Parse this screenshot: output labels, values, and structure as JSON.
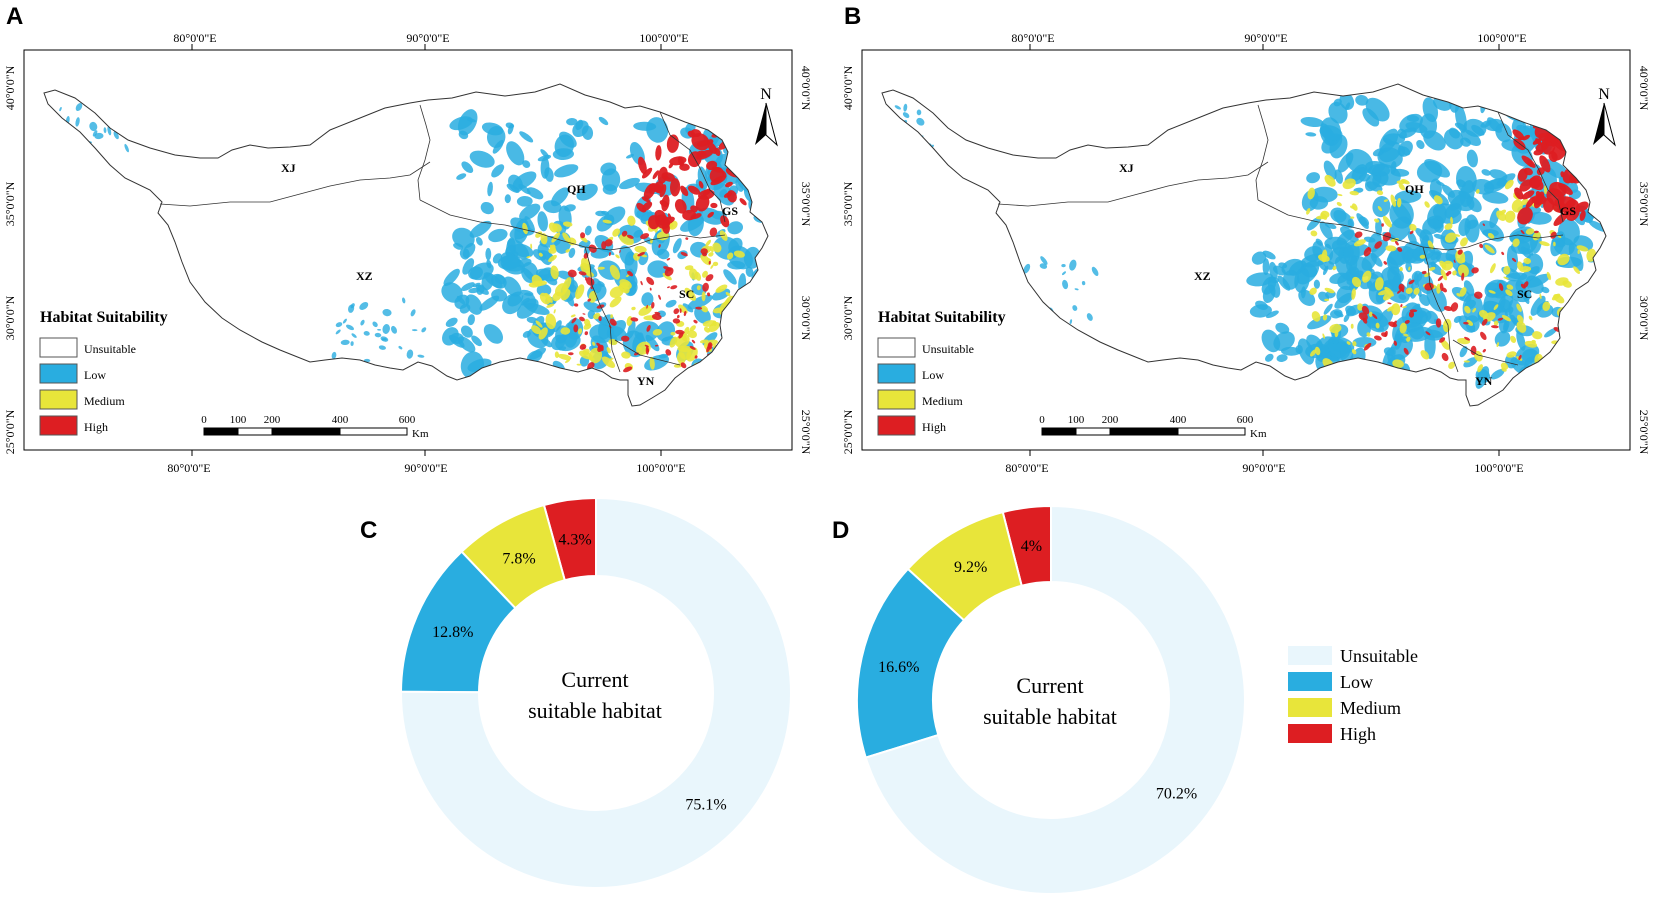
{
  "colors": {
    "unsuitable": "#e9f6fc",
    "low": "#29ade0",
    "medium": "#e8e53a",
    "high": "#dd1e22",
    "outline": "#333333"
  },
  "map_panels": [
    {
      "label": "A",
      "lon_ticks": [
        "80°0'0\"E",
        "90°0'0\"E",
        "100°0'0\"E"
      ],
      "lat_ticks": [
        "40°0'0\"N",
        "35°0'0\"N",
        "30°0'0\"N",
        "25°0'0\"N"
      ],
      "provinces": [
        "XJ",
        "QH",
        "XZ",
        "GS",
        "SC",
        "YN"
      ],
      "legend_title": "Habitat Suitability",
      "legend_items": [
        "Unsuitable",
        "Low",
        "Medium",
        "High"
      ],
      "scale_ticks": [
        "0",
        "100",
        "200",
        "400",
        "600"
      ],
      "scale_unit": "Km",
      "north_label": "N"
    },
    {
      "label": "B",
      "lon_ticks": [
        "80°0'0\"E",
        "90°0'0\"E",
        "100°0'0\"E"
      ],
      "lat_ticks": [
        "40°0'0\"N",
        "35°0'0\"N",
        "30°0'0\"N",
        "25°0'0\"N"
      ],
      "provinces": [
        "XJ",
        "QH",
        "XZ",
        "GS",
        "SC",
        "YN"
      ],
      "legend_title": "Habitat Suitability",
      "legend_items": [
        "Unsuitable",
        "Low",
        "Medium",
        "High"
      ],
      "scale_ticks": [
        "0",
        "100",
        "200",
        "400",
        "600"
      ],
      "scale_unit": "Km",
      "north_label": "N"
    }
  ],
  "chart_data": [
    {
      "label": "C",
      "type": "pie",
      "title": "Current suitable habitat",
      "center_lines": [
        "Current",
        "suitable habitat"
      ],
      "categories": [
        "Unsuitable",
        "Low",
        "Medium",
        "High"
      ],
      "values": [
        75.1,
        12.8,
        7.8,
        4.3
      ],
      "value_labels": [
        "75.1%",
        "12.8%",
        "7.8%",
        "4.3%"
      ]
    },
    {
      "label": "D",
      "type": "pie",
      "title": "Current suitable habitat",
      "center_lines": [
        "Current",
        "suitable habitat"
      ],
      "categories": [
        "Unsuitable",
        "Low",
        "Medium",
        "High"
      ],
      "values": [
        70.2,
        16.6,
        9.2,
        4.0
      ],
      "value_labels": [
        "70.2%",
        "16.6%",
        "9.2%",
        "4%"
      ]
    }
  ],
  "donut_legend": [
    "Unsuitable",
    "Low",
    "Medium",
    "High"
  ]
}
